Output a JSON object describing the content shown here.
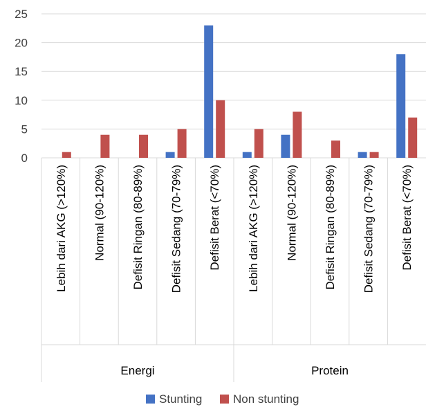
{
  "chart_data": {
    "type": "bar",
    "ylim": [
      0,
      25
    ],
    "yticks": [
      0,
      5,
      10,
      15,
      20,
      25
    ],
    "grid": true,
    "legend_position": "bottom",
    "groups": [
      {
        "name": "Energi",
        "categories": [
          "Lebih dari AKG (>120%)",
          "Normal (90-120%)",
          "Defisit Ringan (80-89%)",
          "Defisit Sedang (70-79%)",
          "Defisit Berat (<70%)"
        ]
      },
      {
        "name": "Protein",
        "categories": [
          "Lebih dari AKG (>120%)",
          "Normal (90-120%)",
          "Defisit Ringan (80-89%)",
          "Defisit Sedang (70-79%)",
          "Defisit Berat (<70%)"
        ]
      }
    ],
    "series": [
      {
        "name": "Stunting",
        "color": "#4472C4",
        "values": [
          0,
          0,
          0,
          1,
          23,
          1,
          4,
          0,
          1,
          18
        ]
      },
      {
        "name": "Non stunting",
        "color": "#C0504D",
        "values": [
          1,
          4,
          4,
          5,
          10,
          5,
          8,
          3,
          1,
          7
        ]
      }
    ],
    "colors": {
      "gridline": "#D9D9D9",
      "axis": "#D9D9D9",
      "text": "#404040"
    }
  }
}
